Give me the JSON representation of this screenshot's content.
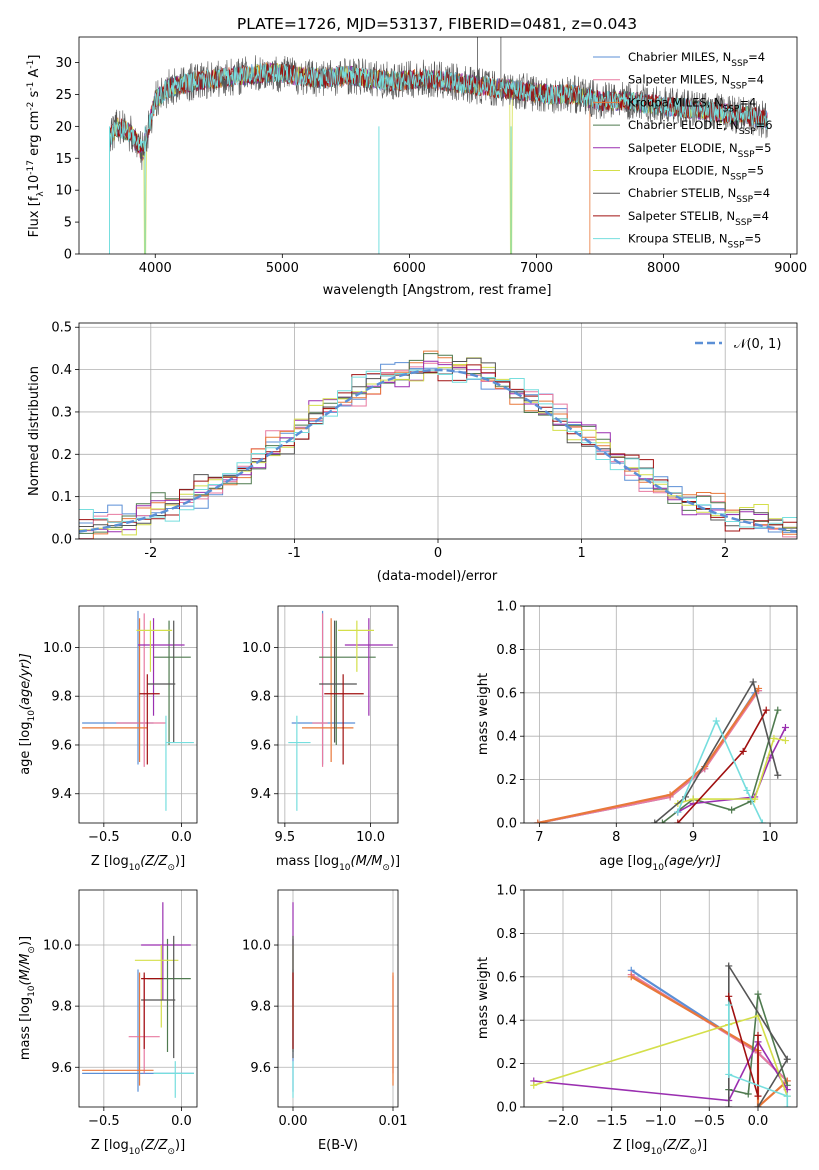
{
  "title": "PLATE=1726, MJD=53137, FIBERID=0481, z=0.043",
  "colors": {
    "Chabrier MILES": "#5b8fd6",
    "Salpeter MILES": "#e87aa0",
    "Kroupa MILES": "#e8783a",
    "Chabrier ELODIE": "#4f7a4f",
    "Salpeter ELODIE": "#9a2fb0",
    "Kroupa ELODIE": "#d4df4a",
    "Chabrier STELIB": "#555555",
    "Salpeter STELIB": "#a01010",
    "Kroupa STELIB": "#76dede"
  },
  "chart_data": [
    {
      "type": "line",
      "xlabel": "wavelength [Angstrom, rest frame]",
      "ylabel_prefix": "Flux [f",
      "ylabel_mid": "10",
      "ylabel_sup": "-17",
      "ylabel_suffix": " erg cm",
      "ylabel_sup2": "-2",
      "ylabel_s": " s",
      "ylabel_sup3": "-1",
      "ylabel_end": " A",
      "ylabel_sup4": "-1",
      "ylabel_close": "]",
      "xlim": [
        3400,
        9050
      ],
      "ylim": [
        0,
        34
      ],
      "xticks": [
        4000,
        5000,
        6000,
        7000,
        8000,
        9000
      ],
      "yticks": [
        0,
        5,
        10,
        15,
        20,
        25,
        30
      ],
      "legend": [
        {
          "name": "Chabrier MILES",
          "n": "4"
        },
        {
          "name": "Salpeter MILES",
          "n": "4"
        },
        {
          "name": "Kroupa MILES",
          "n": "4"
        },
        {
          "name": "Chabrier ELODIE",
          "n": "6"
        },
        {
          "name": "Salpeter ELODIE",
          "n": "5"
        },
        {
          "name": "Kroupa ELODIE",
          "n": "5"
        },
        {
          "name": "Chabrier STELIB",
          "n": "4"
        },
        {
          "name": "Salpeter STELIB",
          "n": "4"
        },
        {
          "name": "Kroupa STELIB",
          "n": "5"
        }
      ],
      "legend_label_nssp": "N",
      "legend_label_sub": "SSP",
      "spectrum_shape": {
        "x": [
          3640,
          3700,
          3800,
          3900,
          3950,
          4000,
          4100,
          4300,
          4500,
          4700,
          4900,
          5100,
          5300,
          5500,
          5700,
          5900,
          6100,
          6300,
          6500,
          6700,
          6900,
          7100,
          7300,
          7500,
          7700,
          7900,
          8100,
          8300,
          8500,
          8700,
          8820
        ],
        "y": [
          18,
          20,
          19,
          16,
          20,
          24,
          26,
          27,
          27.5,
          28,
          28.5,
          28,
          27.5,
          28,
          27.5,
          27,
          27.5,
          27,
          26.5,
          26,
          25.5,
          25,
          25,
          24,
          24,
          23.5,
          23,
          22.5,
          22,
          21.5,
          21
        ]
      }
    },
    {
      "type": "step",
      "xlabel": "(data-model)/error",
      "ylabel": "Normed distribution",
      "xlim": [
        -2.5,
        2.5
      ],
      "ylim": [
        0,
        0.51
      ],
      "xticks": [
        -2,
        -1,
        0,
        1,
        2
      ],
      "yticks": [
        0.0,
        0.1,
        0.2,
        0.3,
        0.4,
        0.5
      ],
      "legend_label": "𝒩(0, 1)",
      "bin_width": 0.1,
      "bin_start": -2.5,
      "amplitude_noise": [
        0.03,
        -0.01,
        0.02,
        0.04,
        -0.03,
        0.01,
        0.05,
        -0.02,
        0.0,
        0.03
      ]
    },
    {
      "type": "errorbar",
      "xlabel_prefix": "Z [log",
      "xlabel_sub": "10",
      "xlabel_suffix": "(Z/Z",
      "xlabel_end": ")]",
      "ylabel": "age  [log",
      "ylabel_sub": "10",
      "ylabel_end": "(age/yr)]",
      "xlim": [
        -0.66,
        0.1
      ],
      "ylim": [
        9.28,
        10.17
      ],
      "xticks": [
        -0.5,
        0.0
      ],
      "xticklabels": [
        "−0.5",
        "0.0"
      ],
      "yticks": [
        9.4,
        9.6,
        9.8,
        10.0
      ],
      "points": [
        {
          "x": -0.28,
          "y": 9.69,
          "xe": [
            -0.64,
            -0.18
          ],
          "ye": [
            9.52,
            10.15
          ]
        },
        {
          "x": -0.24,
          "y": 9.69,
          "xe": [
            -0.42,
            -0.1
          ],
          "ye": [
            9.51,
            10.14
          ]
        },
        {
          "x": -0.27,
          "y": 9.67,
          "xe": [
            -0.64,
            -0.22
          ],
          "ye": [
            9.53,
            10.12
          ]
        },
        {
          "x": -0.08,
          "y": 9.96,
          "xe": [
            -0.18,
            0.06
          ],
          "ye": [
            9.6,
            10.11
          ]
        },
        {
          "x": -0.18,
          "y": 10.01,
          "xe": [
            -0.28,
            0.02
          ],
          "ye": [
            9.72,
            10.12
          ]
        },
        {
          "x": -0.2,
          "y": 10.07,
          "xe": [
            -0.29,
            -0.06
          ],
          "ye": [
            9.9,
            10.11
          ]
        },
        {
          "x": -0.05,
          "y": 9.85,
          "xe": [
            -0.22,
            -0.04
          ],
          "ye": [
            9.61,
            10.11
          ]
        },
        {
          "x": -0.22,
          "y": 9.81,
          "xe": [
            -0.27,
            -0.14
          ],
          "ye": [
            9.52,
            9.89
          ]
        },
        {
          "x": -0.1,
          "y": 9.61,
          "xe": [
            -0.1,
            0.08
          ],
          "ye": [
            9.33,
            9.72
          ]
        }
      ]
    },
    {
      "type": "errorbar",
      "xlabel_prefix": "mass [log",
      "xlabel_sub": "10",
      "xlabel_suffix": "(M/M",
      "xlabel_end": ")]",
      "xlim": [
        9.46,
        10.16
      ],
      "ylim": [
        9.28,
        10.17
      ],
      "xticks": [
        9.5,
        10.0
      ],
      "xticklabels": [
        "9.5",
        "10.0"
      ],
      "yticks": [
        9.4,
        9.6,
        9.8,
        10.0
      ],
      "points": [
        {
          "x": 9.72,
          "y": 9.69,
          "xe": [
            9.54,
            9.91
          ],
          "ye": [
            9.52,
            10.15
          ]
        },
        {
          "x": 9.72,
          "y": 9.69,
          "xe": [
            9.66,
            9.75
          ],
          "ye": [
            9.51,
            10.14
          ]
        },
        {
          "x": 9.77,
          "y": 9.67,
          "xe": [
            9.6,
            9.9
          ],
          "ye": [
            9.53,
            10.12
          ]
        },
        {
          "x": 9.8,
          "y": 9.96,
          "xe": [
            9.7,
            10.03
          ],
          "ye": [
            9.6,
            10.11
          ]
        },
        {
          "x": 9.99,
          "y": 10.01,
          "xe": [
            9.85,
            10.13
          ],
          "ye": [
            9.72,
            10.12
          ]
        },
        {
          "x": 9.92,
          "y": 10.07,
          "xe": [
            9.81,
            10.02
          ],
          "ye": [
            9.9,
            10.11
          ]
        },
        {
          "x": 9.79,
          "y": 9.85,
          "xe": [
            9.7,
            9.92
          ],
          "ye": [
            9.61,
            10.11
          ]
        },
        {
          "x": 9.84,
          "y": 9.81,
          "xe": [
            9.73,
            9.96
          ],
          "ye": [
            9.52,
            9.89
          ]
        },
        {
          "x": 9.57,
          "y": 9.61,
          "xe": [
            9.52,
            9.65
          ],
          "ye": [
            9.33,
            9.72
          ]
        }
      ]
    },
    {
      "type": "line",
      "xlabel": "age  [log",
      "xlabel_sub": "10",
      "xlabel_end": "(age/yr)]",
      "ylabel": "mass weight",
      "xlim": [
        6.8,
        10.35
      ],
      "ylim": [
        0,
        1
      ],
      "xticks": [
        7,
        8,
        9,
        10
      ],
      "yticks": [
        0.0,
        0.2,
        0.4,
        0.6,
        0.8,
        1.0
      ],
      "series": [
        {
          "key": "Chabrier MILES",
          "x": [
            6.98,
            8.7,
            9.15,
            9.8,
            9.85
          ],
          "y": [
            0.0,
            0.12,
            0.25,
            0.6,
            0.61
          ]
        },
        {
          "key": "Salpeter MILES",
          "x": [
            6.98,
            8.7,
            9.15,
            9.85
          ],
          "y": [
            0.0,
            0.12,
            0.25,
            0.61
          ]
        },
        {
          "key": "Kroupa MILES",
          "x": [
            6.98,
            8.7,
            9.15,
            9.85
          ],
          "y": [
            0.0,
            0.13,
            0.26,
            0.62
          ]
        },
        {
          "key": "Chabrier ELODIE",
          "x": [
            8.6,
            9.0,
            9.5,
            9.75,
            10.1
          ],
          "y": [
            0.0,
            0.11,
            0.06,
            0.1,
            0.52
          ]
        },
        {
          "key": "Salpeter ELODIE",
          "x": [
            8.8,
            9.0,
            9.8,
            10.0,
            10.2
          ],
          "y": [
            0.05,
            0.09,
            0.12,
            0.3,
            0.44
          ]
        },
        {
          "key": "Kroupa ELODIE",
          "x": [
            8.8,
            9.0,
            9.8,
            10.05,
            10.2
          ],
          "y": [
            0.09,
            0.11,
            0.11,
            0.39,
            0.38
          ]
        },
        {
          "key": "Chabrier STELIB",
          "x": [
            8.5,
            8.9,
            9.78,
            10.1
          ],
          "y": [
            0.0,
            0.12,
            0.65,
            0.22
          ]
        },
        {
          "key": "Salpeter STELIB",
          "x": [
            8.8,
            9.65,
            9.95
          ],
          "y": [
            0.0,
            0.33,
            0.52
          ]
        },
        {
          "key": "Kroupa STELIB",
          "x": [
            8.8,
            9.3,
            9.7,
            9.9
          ],
          "y": [
            0.05,
            0.47,
            0.15,
            0.0
          ]
        }
      ]
    },
    {
      "type": "errorbar",
      "xlabel_prefix": "Z [log",
      "xlabel_sub": "10",
      "xlabel_suffix": "(Z/Z",
      "xlabel_end": ")]",
      "ylabel": "mass [log",
      "ylabel_sub": "10",
      "ylabel_end": "(M/M",
      "ylabel_close": ")]",
      "xlim": [
        -0.66,
        0.1
      ],
      "ylim": [
        9.47,
        10.18
      ],
      "xticks": [
        -0.5,
        0.0
      ],
      "xticklabels": [
        "−0.5",
        "0.0"
      ],
      "yticks": [
        9.6,
        9.8,
        10.0
      ],
      "points": [
        {
          "x": -0.28,
          "y": 9.58,
          "xe": [
            -0.64,
            0.08
          ],
          "ye": [
            9.52,
            9.92
          ]
        },
        {
          "x": -0.24,
          "y": 9.7,
          "xe": [
            -0.34,
            -0.14
          ],
          "ye": [
            9.58,
            9.9
          ]
        },
        {
          "x": -0.27,
          "y": 9.59,
          "xe": [
            -0.64,
            -0.18
          ],
          "ye": [
            9.54,
            9.91
          ]
        },
        {
          "x": -0.09,
          "y": 9.89,
          "xe": [
            -0.22,
            0.06
          ],
          "ye": [
            9.65,
            10.02
          ]
        },
        {
          "x": -0.12,
          "y": 10.0,
          "xe": [
            -0.26,
            0.06
          ],
          "ye": [
            9.82,
            10.14
          ]
        },
        {
          "x": -0.13,
          "y": 9.95,
          "xe": [
            -0.3,
            -0.02
          ],
          "ye": [
            9.73,
            10.0
          ]
        },
        {
          "x": -0.05,
          "y": 9.82,
          "xe": [
            -0.26,
            -0.04
          ],
          "ye": [
            9.63,
            10.03
          ]
        },
        {
          "x": -0.24,
          "y": 9.89,
          "xe": [
            -0.26,
            -0.12
          ],
          "ye": [
            9.66,
            9.91
          ]
        },
        {
          "x": -0.04,
          "y": 9.58,
          "xe": [
            -0.18,
            0.08
          ],
          "ye": [
            9.5,
            9.62
          ]
        }
      ]
    },
    {
      "type": "errorbar",
      "xlabel": "E(B-V)",
      "xlim": [
        -0.0015,
        0.0105
      ],
      "ylim": [
        9.47,
        10.18
      ],
      "xticks": [
        0.0,
        0.01
      ],
      "xticklabels": [
        "0.00",
        "0.01"
      ],
      "yticks": [
        9.6,
        9.8,
        10.0
      ],
      "points": [
        {
          "x": 0.0,
          "y": 9.58,
          "ye": [
            9.52,
            9.92
          ]
        },
        {
          "x": 0.01,
          "y": 9.7,
          "ye": [
            9.58,
            9.9
          ]
        },
        {
          "x": 0.01,
          "y": 9.59,
          "ye": [
            9.54,
            9.91
          ]
        },
        {
          "x": 0.0,
          "y": 9.89,
          "ye": [
            9.65,
            10.02
          ]
        },
        {
          "x": 0.0,
          "y": 10.0,
          "ye": [
            9.82,
            10.14
          ]
        },
        {
          "x": 0.0,
          "y": 9.95,
          "ye": [
            9.73,
            10.0
          ]
        },
        {
          "x": 0.0,
          "y": 9.82,
          "ye": [
            9.63,
            10.03
          ]
        },
        {
          "x": 0.0,
          "y": 9.89,
          "ye": [
            9.66,
            9.91
          ]
        },
        {
          "x": 0.0,
          "y": 9.58,
          "ye": [
            9.5,
            9.62
          ]
        }
      ]
    },
    {
      "type": "line",
      "xlabel_prefix": "Z [log",
      "xlabel_sub": "10",
      "xlabel_suffix": "(Z/Z",
      "xlabel_end": ")]",
      "ylabel": "mass weight",
      "xlim": [
        -2.4,
        0.4
      ],
      "ylim": [
        0,
        1
      ],
      "xticks": [
        -2.0,
        -1.5,
        -1.0,
        -0.5,
        0.0
      ],
      "xticklabels": [
        "−2.0",
        "−1.5",
        "−1.0",
        "−0.5",
        "0.0"
      ],
      "yticks": [
        0.0,
        0.2,
        0.4,
        0.6,
        0.8,
        1.0
      ],
      "series": [
        {
          "key": "Chabrier MILES",
          "x": [
            -1.3,
            0.0,
            0.3
          ],
          "y": [
            0.63,
            0.25,
            0.12
          ]
        },
        {
          "key": "Salpeter MILES",
          "x": [
            -1.3,
            0.0,
            0.3
          ],
          "y": [
            0.61,
            0.25,
            0.12
          ]
        },
        {
          "key": "Kroupa MILES",
          "x": [
            -1.3,
            0.0,
            0.0,
            0.3
          ],
          "y": [
            0.6,
            0.26,
            0.0,
            0.12
          ]
        },
        {
          "key": "Chabrier ELODIE",
          "x": [
            -0.3,
            -0.1,
            0.0,
            0.3
          ],
          "y": [
            0.08,
            0.06,
            0.52,
            0.1
          ]
        },
        {
          "key": "Salpeter ELODIE",
          "x": [
            -2.3,
            -0.3,
            0.0,
            0.3
          ],
          "y": [
            0.12,
            0.03,
            0.3,
            0.08
          ]
        },
        {
          "key": "Kroupa ELODIE",
          "x": [
            -2.3,
            -0.3,
            0.0,
            0.3
          ],
          "y": [
            0.1,
            0.38,
            0.42,
            0.05
          ]
        },
        {
          "key": "Chabrier STELIB",
          "x": [
            -0.3,
            -0.3,
            0.3,
            0.0
          ],
          "y": [
            0.0,
            0.65,
            0.22,
            0.0
          ]
        },
        {
          "key": "Salpeter STELIB",
          "x": [
            -0.3,
            0.0,
            0.0
          ],
          "y": [
            0.51,
            0.05,
            0.33
          ]
        },
        {
          "key": "Kroupa STELIB",
          "x": [
            -0.3,
            -0.3,
            0.3,
            0.3
          ],
          "y": [
            0.47,
            0.15,
            0.05,
            0.0
          ]
        }
      ]
    }
  ]
}
